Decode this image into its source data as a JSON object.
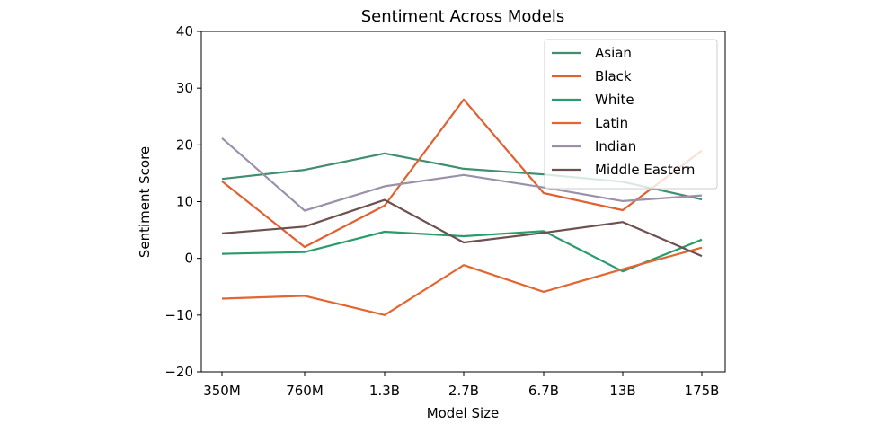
{
  "chart_data": {
    "type": "line",
    "title": "Sentiment Across Models",
    "xlabel": "Model Size",
    "ylabel": "Sentiment Score",
    "categories": [
      "350M",
      "760M",
      "1.3B",
      "2.7B",
      "6.7B",
      "13B",
      "175B"
    ],
    "ylim": [
      -20,
      40
    ],
    "yticks": [
      -20,
      -10,
      0,
      10,
      20,
      30,
      40
    ],
    "grid": false,
    "legend_position": "top-right",
    "series": [
      {
        "name": "Asian",
        "color": "#3f8f6e",
        "values": [
          14.0,
          15.6,
          18.5,
          15.8,
          14.8,
          13.5,
          10.4
        ]
      },
      {
        "name": "Black",
        "color": "#e06030",
        "values": [
          13.6,
          2.0,
          9.3,
          28.0,
          11.5,
          8.5,
          19.0
        ]
      },
      {
        "name": "White",
        "color": "#2a9c6c",
        "values": [
          0.8,
          1.1,
          4.7,
          3.9,
          4.8,
          -2.3,
          3.3
        ]
      },
      {
        "name": "Latin",
        "color": "#e36530",
        "values": [
          -7.1,
          -6.6,
          -10.0,
          -1.2,
          -5.9,
          -1.9,
          1.9
        ]
      },
      {
        "name": "Indian",
        "color": "#9a90aa",
        "values": [
          21.2,
          8.4,
          12.7,
          14.7,
          12.5,
          10.1,
          11.1
        ]
      },
      {
        "name": "Middle Eastern",
        "color": "#6e5050",
        "values": [
          4.4,
          5.6,
          10.3,
          2.8,
          4.5,
          6.4,
          0.4
        ]
      }
    ]
  }
}
